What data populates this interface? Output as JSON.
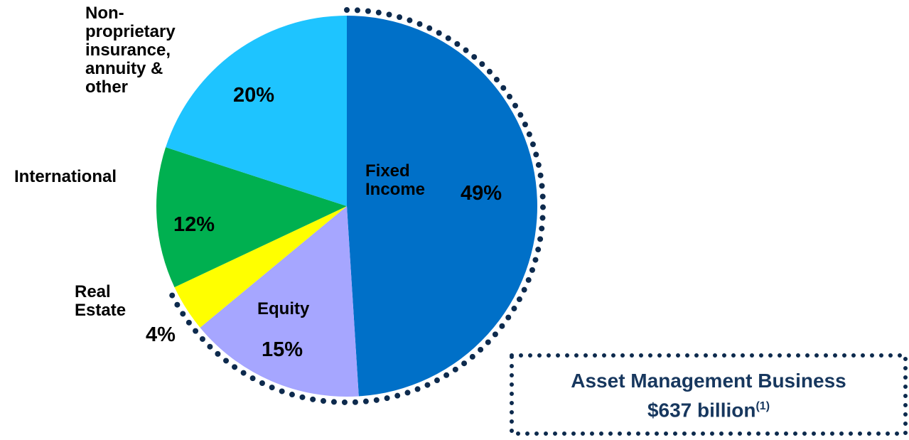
{
  "chart_data": {
    "type": "pie",
    "categories": [
      "Fixed\nIncome",
      "Equity",
      "Real\nEstate",
      "International",
      "Non-\nproprietary\ninsurance,\nannuity &\nother"
    ],
    "values": [
      49,
      15,
      4,
      12,
      20
    ],
    "value_labels": [
      "49%",
      "15%",
      "4%",
      "12%",
      "20%"
    ],
    "colors": [
      "#0070c8",
      "#a6a6ff",
      "#ffff00",
      "#00b050",
      "#1ec4ff"
    ],
    "annotation": {
      "line1": "Asset Management Business",
      "line2": "$637 billion",
      "footnote": "(1)"
    }
  }
}
